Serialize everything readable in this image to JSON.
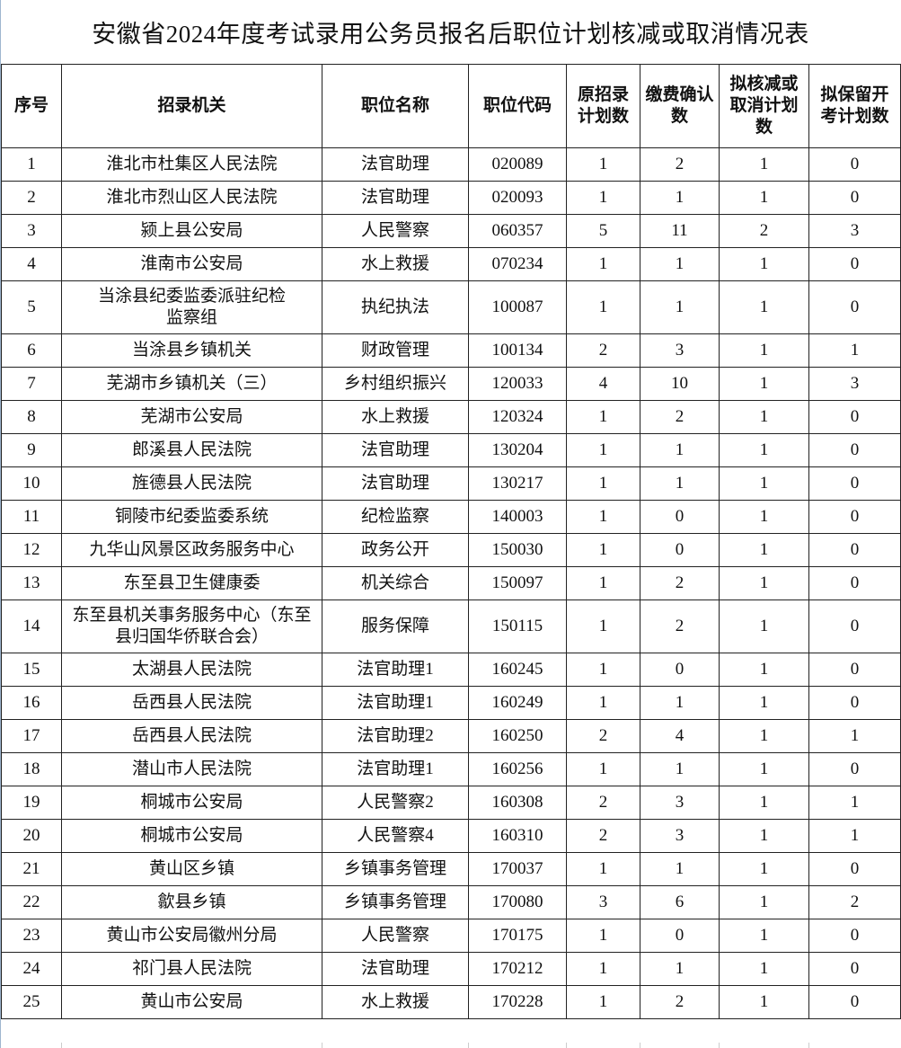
{
  "title": "安徽省2024年度考试录用公务员报名后职位计划核减或取消情况表",
  "columns": [
    "序号",
    "招录机关",
    "职位名称",
    "职位代码",
    "原招录计划数",
    "缴费确认数",
    "拟核减或取消计划数",
    "拟保留开考计划数"
  ],
  "rows": [
    [
      "1",
      "淮北市杜集区人民法院",
      "法官助理",
      "020089",
      "1",
      "2",
      "1",
      "0"
    ],
    [
      "2",
      "淮北市烈山区人民法院",
      "法官助理",
      "020093",
      "1",
      "1",
      "1",
      "0"
    ],
    [
      "3",
      "颍上县公安局",
      "人民警察",
      "060357",
      "5",
      "11",
      "2",
      "3"
    ],
    [
      "4",
      "淮南市公安局",
      "水上救援",
      "070234",
      "1",
      "1",
      "1",
      "0"
    ],
    [
      "5",
      "当涂县纪委监委派驻纪检监察组",
      "执纪执法",
      "100087",
      "1",
      "1",
      "1",
      "0"
    ],
    [
      "6",
      "当涂县乡镇机关",
      "财政管理",
      "100134",
      "2",
      "3",
      "1",
      "1"
    ],
    [
      "7",
      "芜湖市乡镇机关（三）",
      "乡村组织振兴",
      "120033",
      "4",
      "10",
      "1",
      "3"
    ],
    [
      "8",
      "芜湖市公安局",
      "水上救援",
      "120324",
      "1",
      "2",
      "1",
      "0"
    ],
    [
      "9",
      "郎溪县人民法院",
      "法官助理",
      "130204",
      "1",
      "1",
      "1",
      "0"
    ],
    [
      "10",
      "旌德县人民法院",
      "法官助理",
      "130217",
      "1",
      "1",
      "1",
      "0"
    ],
    [
      "11",
      "铜陵市纪委监委系统",
      "纪检监察",
      "140003",
      "1",
      "0",
      "1",
      "0"
    ],
    [
      "12",
      "九华山风景区政务服务中心",
      "政务公开",
      "150030",
      "1",
      "0",
      "1",
      "0"
    ],
    [
      "13",
      "东至县卫生健康委",
      "机关综合",
      "150097",
      "1",
      "2",
      "1",
      "0"
    ],
    [
      "14",
      "东至县机关事务服务中心（东至县归国华侨联合会）",
      "服务保障",
      "150115",
      "1",
      "2",
      "1",
      "0"
    ],
    [
      "15",
      "太湖县人民法院",
      "法官助理1",
      "160245",
      "1",
      "0",
      "1",
      "0"
    ],
    [
      "16",
      "岳西县人民法院",
      "法官助理1",
      "160249",
      "1",
      "1",
      "1",
      "0"
    ],
    [
      "17",
      "岳西县人民法院",
      "法官助理2",
      "160250",
      "2",
      "4",
      "1",
      "1"
    ],
    [
      "18",
      "潜山市人民法院",
      "法官助理1",
      "160256",
      "1",
      "1",
      "1",
      "0"
    ],
    [
      "19",
      "桐城市公安局",
      "人民警察2",
      "160308",
      "2",
      "3",
      "1",
      "1"
    ],
    [
      "20",
      "桐城市公安局",
      "人民警察4",
      "160310",
      "2",
      "3",
      "1",
      "1"
    ],
    [
      "21",
      "黄山区乡镇",
      "乡镇事务管理",
      "170037",
      "1",
      "1",
      "1",
      "0"
    ],
    [
      "22",
      "歙县乡镇",
      "乡镇事务管理",
      "170080",
      "3",
      "6",
      "1",
      "2"
    ],
    [
      "23",
      "黄山市公安局徽州分局",
      "人民警察",
      "170175",
      "1",
      "0",
      "1",
      "0"
    ],
    [
      "24",
      "祁门县人民法院",
      "法官助理",
      "170212",
      "1",
      "1",
      "1",
      "0"
    ],
    [
      "25",
      "黄山市公安局",
      "水上救援",
      "170228",
      "1",
      "2",
      "1",
      "0"
    ]
  ]
}
